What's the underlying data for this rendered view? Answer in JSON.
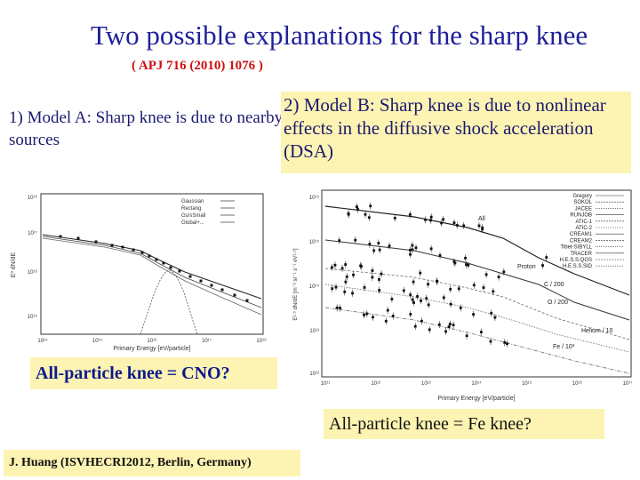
{
  "slide": {
    "title": "Two possible explanations for the sharp knee",
    "citation": "( APJ 716 (2010) 1076 )",
    "model_a": "1) Model A: Sharp knee is due to nearby sources",
    "model_b": "2) Model B: Sharp knee is due to nonlinear effects in the diffusive shock acceleration (DSA)",
    "caption_a": "All-particle knee = CNO?",
    "caption_b": "All-particle knee = Fe knee?",
    "author": "J. Huang (ISVHECRI2012, Berlin, Germany)"
  },
  "plot_a": {
    "xlabel": "Primary Energy [eV/particle]",
    "ylabel": "E³ dN/dE",
    "legend": [
      "Gaussian",
      "Rectang",
      "Gs/sSmall",
      "Global+..."
    ],
    "y_ticks": [
      "10¹⁶",
      "10¹⁷",
      "10¹⁶",
      "10¹⁵"
    ],
    "x_ticks": [
      "10¹⁴",
      "10¹⁵",
      "10¹⁶",
      "10¹⁷",
      "10¹⁸"
    ]
  },
  "plot_b": {
    "xlabel": "Primary Energy [eV/particle]",
    "ylabel": "E²·⁵ dN/dE [m⁻² sr⁻¹ s⁻¹ eV¹·⁵]",
    "legend": [
      "Gregory",
      "SOKOL",
      "JACEE",
      "RUNJOB",
      "ATIC-1",
      "ATIC-2",
      "CREAM1",
      "CREAM2",
      "Tibet-SIBYLL",
      "TRACER",
      "H.E.S.S.QGS",
      "H.E.S.S.SID"
    ],
    "curve_labels": [
      "All",
      "Proton",
      "C / 200",
      "Helium / 10",
      "O / 200",
      "Fe / 10³"
    ],
    "y_ticks": [
      "10¹⁶",
      "10¹⁵",
      "10¹⁴",
      "10¹³",
      "10¹²"
    ],
    "x_ticks": [
      "10¹¹",
      "10¹²",
      "10¹³",
      "10¹⁴",
      "10¹⁵",
      "10¹⁶",
      "10¹⁷"
    ]
  },
  "colors": {
    "title": "#1f1f9a",
    "citation": "#cc1111",
    "highlight": "#fdf3b2"
  }
}
